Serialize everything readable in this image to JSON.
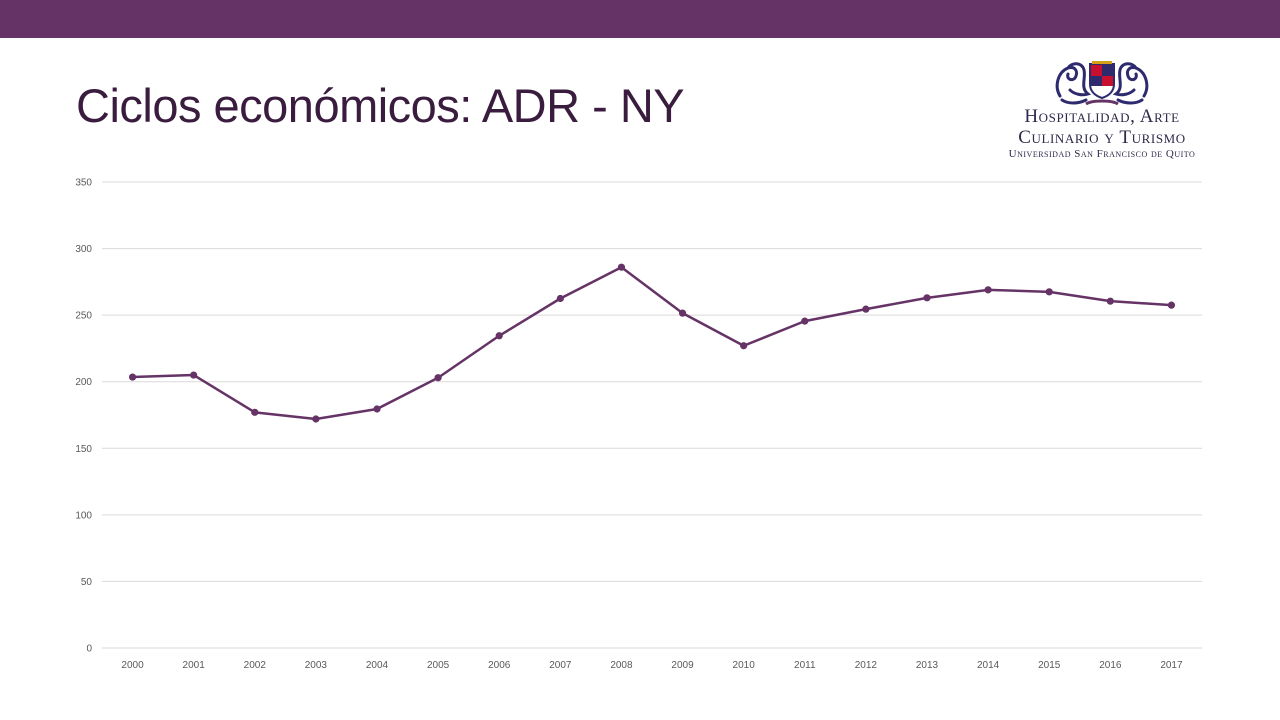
{
  "slide": {
    "title": "Ciclos económicos: ADR - NY",
    "bar_color": "#653366"
  },
  "logo": {
    "line1": "Hospitalidad, Arte",
    "line2": "Culinario y Turismo",
    "line3": "Universidad San Francisco de Quito",
    "icon": "twin-dragons-crest-icon"
  },
  "chart_data": {
    "type": "line",
    "x": [
      "2000",
      "2001",
      "2002",
      "2003",
      "2004",
      "2005",
      "2006",
      "2007",
      "2008",
      "2009",
      "2010",
      "2011",
      "2012",
      "2013",
      "2014",
      "2015",
      "2016",
      "2017"
    ],
    "series": [
      {
        "values": [
          203.5,
          205,
          177,
          172,
          179.5,
          203,
          234.5,
          262.5,
          286,
          251.5,
          227,
          245.5,
          254.5,
          263,
          269,
          267.5,
          260.5,
          257.5
        ],
        "color": "#653366"
      }
    ],
    "yticks": [
      "0",
      "50",
      "100",
      "150",
      "200",
      "250",
      "300",
      "350"
    ],
    "ylim": [
      0,
      350
    ],
    "grid": true,
    "legend": "none",
    "xlabel": "",
    "ylabel": ""
  }
}
